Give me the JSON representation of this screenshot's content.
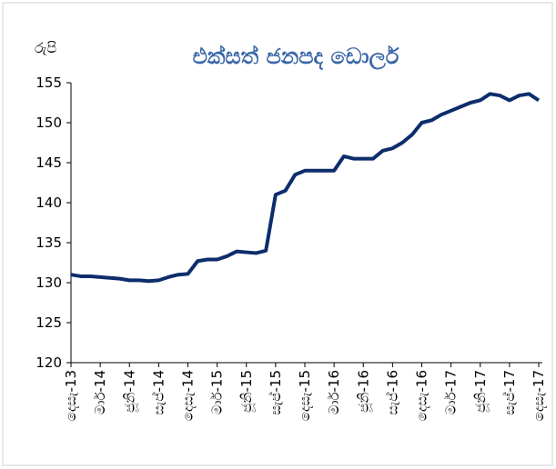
{
  "chart_data": {
    "type": "line",
    "title": "එක්සත් ජනපද ඩොලර්",
    "y_label": "රුපි",
    "categories": [
      "දෙසැ-13",
      null,
      null,
      "මාර්-14",
      null,
      null,
      "ජූනි-14",
      null,
      null,
      "සැප්-14",
      null,
      null,
      "දෙසැ-14",
      null,
      null,
      "මාර්-15",
      null,
      null,
      "ජූනි-15",
      null,
      null,
      "සැප්-15",
      null,
      null,
      "දෙසැ-15",
      null,
      null,
      "මාර්-16",
      null,
      null,
      "ජූනි-16",
      null,
      null,
      "සැප්-16",
      null,
      null,
      "දෙසැ-16",
      null,
      null,
      "මාර්-17",
      null,
      null,
      "ජූනි-17",
      null,
      null,
      "සැප්-17",
      null,
      null,
      "දෙසැ-17"
    ],
    "series": [
      {
        "color": "#0d2d6b",
        "values": [
          131.0,
          130.8,
          130.8,
          130.7,
          130.6,
          130.5,
          130.3,
          130.3,
          130.2,
          130.3,
          130.7,
          131.0,
          131.1,
          132.7,
          132.9,
          132.9,
          133.3,
          133.9,
          133.8,
          133.7,
          134.0,
          141.0,
          141.5,
          143.5,
          144.0,
          144.0,
          144.0,
          144.0,
          145.8,
          145.5,
          145.5,
          145.5,
          146.5,
          146.8,
          147.5,
          148.5,
          150.0,
          150.3,
          151.0,
          151.5,
          152.0,
          152.5,
          152.8,
          153.6,
          153.4,
          152.8,
          153.4,
          153.6,
          152.8
        ]
      }
    ],
    "ylim": [
      120,
      155
    ],
    "yticks": [
      120,
      125,
      130,
      135,
      140,
      145,
      150,
      155
    ],
    "grid": false
  }
}
